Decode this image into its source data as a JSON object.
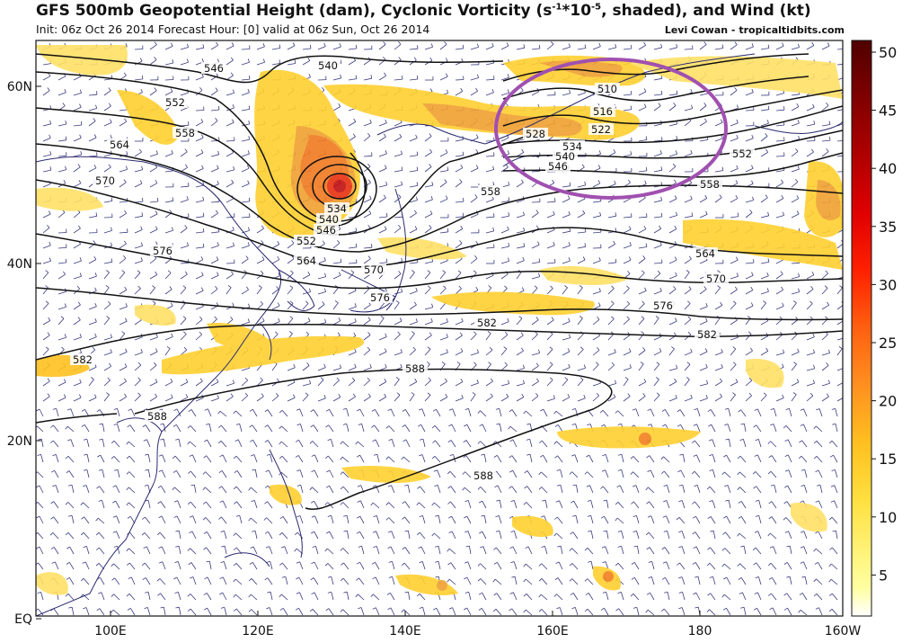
{
  "header": {
    "title_a": "GFS 500mb Geopotential Height (dam), Cyclonic Vorticity (s",
    "title_sup1": "-1",
    "title_b": "*10",
    "title_sup2": "-5",
    "title_c": ", shaded), and Wind (kt)",
    "subtitle": "Init: 06z Oct 26 2014 Forecast Hour: [0] valid at 06z Sun, Oct 26 2014",
    "credit": "Levi Cowan - tropicaltidbits.com"
  },
  "axes": {
    "lon_labels": [
      "100E",
      "120E",
      "140E",
      "160E",
      "180",
      "160W"
    ],
    "lat_labels": [
      "60N",
      "40N",
      "20N",
      "EQ"
    ]
  },
  "colorbar": {
    "labels": [
      "50",
      "45",
      "40",
      "35",
      "30",
      "25",
      "20",
      "15",
      "10",
      "5"
    ]
  },
  "contours": {
    "labels": [
      "546",
      "540",
      "552",
      "558",
      "564",
      "570",
      "576",
      "534",
      "540",
      "546",
      "552",
      "564",
      "570",
      "576",
      "582",
      "588",
      "588",
      "588",
      "510",
      "516",
      "522",
      "528",
      "534",
      "540",
      "546",
      "552",
      "558",
      "564",
      "570",
      "576",
      "582",
      "582",
      "558"
    ]
  },
  "colors": {
    "vorticity_low": "#ffe066",
    "vorticity_mid": "#ffc020",
    "vorticity_high": "#f08020",
    "vorticity_max": "#e02010",
    "highlight_ellipse": "#a050b0",
    "contour": "#111111",
    "wind_barb": "#3a3a80"
  }
}
